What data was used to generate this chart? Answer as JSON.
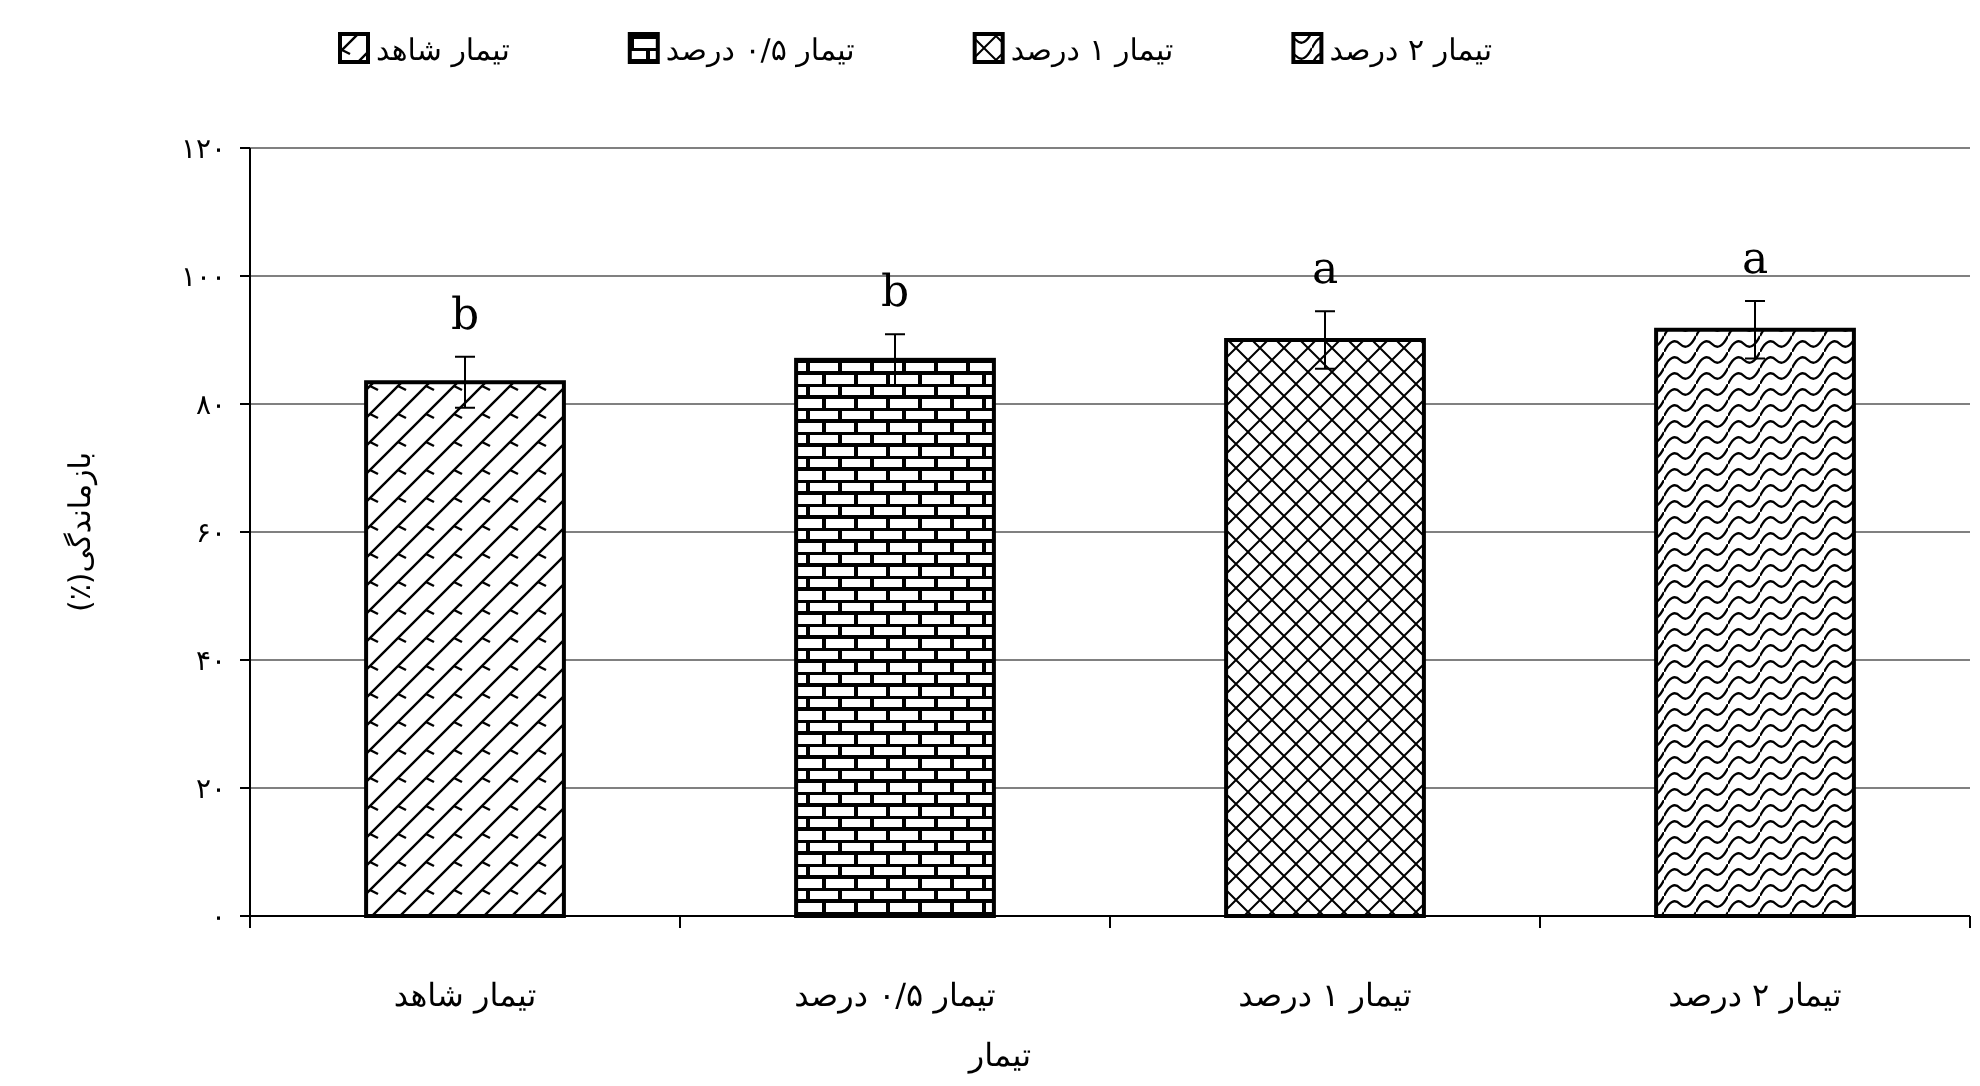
{
  "chart_data": {
    "type": "bar",
    "categories": [
      "تیمار شاهد",
      "تیمار ۰/۵ درصد",
      "تیمار ۱ درصد",
      "تیمار ۲ درصد"
    ],
    "series": [
      {
        "name": "تیمار شاهد",
        "color": "#000000",
        "values": [
          83.4,
          null,
          null,
          null
        ],
        "errors": [
          4,
          null,
          null,
          null
        ]
      },
      {
        "name": "تیمار ۰/۵ درصد",
        "color": "#000000",
        "values": [
          null,
          86.9,
          null,
          null
        ],
        "errors": [
          null,
          4,
          null,
          null
        ]
      },
      {
        "name": "تیمار ۱ درصد",
        "color": "#000000",
        "values": [
          null,
          null,
          90,
          null
        ],
        "errors": [
          null,
          null,
          4.5,
          null
        ]
      },
      {
        "name": "تیمار ۲ درصد",
        "color": "#000000",
        "values": [
          null,
          null,
          null,
          91.6
        ],
        "errors": [
          null,
          null,
          null,
          4.5
        ]
      }
    ],
    "xlabel": "تیمار",
    "ylabel": "بازماندگی(٪)",
    "ylim": [
      0,
      120
    ],
    "yticks": [
      {
        "value": 0,
        "label": "۰"
      },
      {
        "value": 20,
        "label": "۲۰"
      },
      {
        "value": 40,
        "label": "۴۰"
      },
      {
        "value": 60,
        "label": "۶۰"
      },
      {
        "value": 80,
        "label": "۸۰"
      },
      {
        "value": 100,
        "label": "۱۰۰"
      },
      {
        "value": 120,
        "label": "۱۲۰"
      }
    ],
    "grid": "y",
    "legend": "top",
    "annotations": [
      {
        "text": "b",
        "x": "تیمار شاهد",
        "y": 83.4
      },
      {
        "text": "b",
        "x": "تیمار ۰/۵ درصد",
        "y": 86.9
      },
      {
        "text": "a",
        "x": "تیمار ۱ درصد",
        "y": 90
      },
      {
        "text": "a",
        "x": "تیمار ۲ درصد",
        "y": 91.6
      }
    ]
  }
}
